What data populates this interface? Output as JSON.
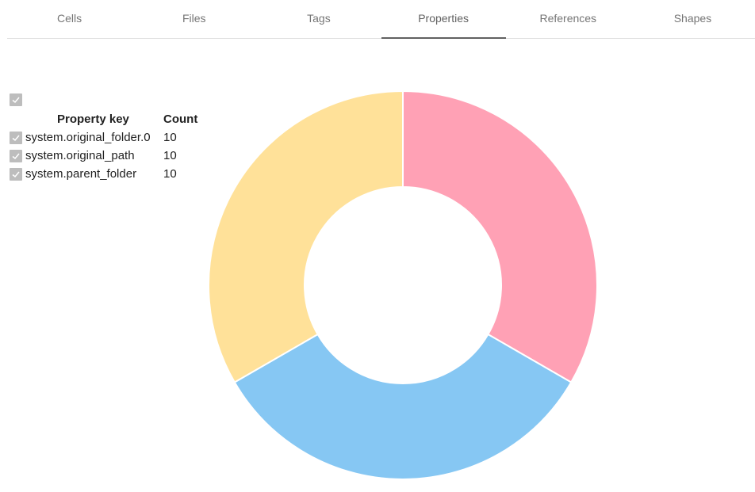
{
  "tabs": [
    {
      "label": "Cells",
      "active": false
    },
    {
      "label": "Files",
      "active": false
    },
    {
      "label": "Tags",
      "active": false
    },
    {
      "label": "Properties",
      "active": true
    },
    {
      "label": "References",
      "active": false
    },
    {
      "label": "Shapes",
      "active": false
    }
  ],
  "legend": {
    "select_all_checked": true,
    "header": {
      "key": "Property key",
      "count": "Count"
    },
    "rows": [
      {
        "key": "system.original_folder.0",
        "count": "10",
        "checked": true,
        "color": "#ffa1b5"
      },
      {
        "key": "system.original_path",
        "count": "10",
        "checked": true,
        "color": "#86c7f3"
      },
      {
        "key": "system.parent_folder",
        "count": "10",
        "checked": true,
        "color": "#ffe199"
      }
    ]
  },
  "chart_data": {
    "type": "pie",
    "variant": "doughnut",
    "title": "",
    "categories": [
      "system.original_folder.0",
      "system.original_path",
      "system.parent_folder"
    ],
    "values": [
      10,
      10,
      10
    ],
    "colors": [
      "#ffa1b5",
      "#86c7f3",
      "#ffe199"
    ],
    "legend_position": "left",
    "start_angle_deg": -90,
    "cutout_ratio": 0.5
  }
}
